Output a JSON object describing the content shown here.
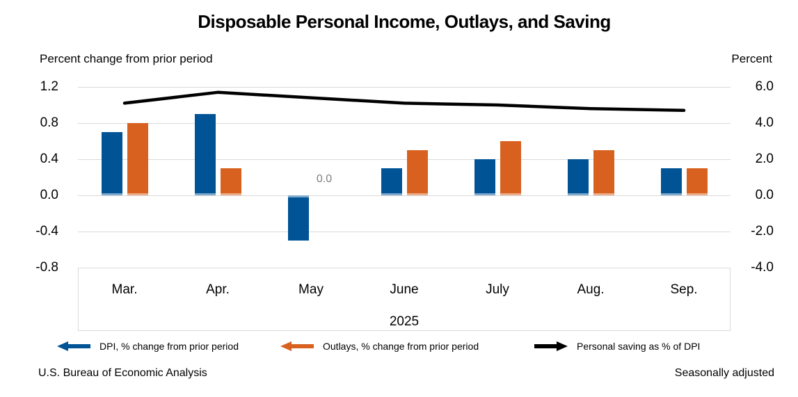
{
  "title": "Disposable Personal Income, Outlays, and Saving",
  "source_note": "U.S. Bureau of Economic Analysis",
  "adjustment_note": "Seasonally adjusted",
  "chart_data": {
    "type": "combo_bar_line",
    "categories": [
      "Mar.",
      "Apr.",
      "May",
      "June",
      "July",
      "Aug.",
      "Sep."
    ],
    "year_label": "2025",
    "left_axis": {
      "label": "Percent change from prior period",
      "min": -0.8,
      "max": 1.2,
      "ticks": [
        {
          "label": "1.2",
          "value": 1.2
        },
        {
          "label": "0.8",
          "value": 0.8
        },
        {
          "label": "0.4",
          "value": 0.4
        },
        {
          "label": "0.0",
          "value": 0.0
        },
        {
          "label": "-0.4",
          "value": -0.4
        },
        {
          "label": "-0.8",
          "value": -0.8
        }
      ]
    },
    "right_axis": {
      "label": "Percent",
      "min": -4.0,
      "max": 6.0,
      "ticks": [
        {
          "label": "6.0",
          "value": 6.0
        },
        {
          "label": "4.0",
          "value": 4.0
        },
        {
          "label": "2.0",
          "value": 2.0
        },
        {
          "label": "0.0",
          "value": 0.0
        },
        {
          "label": "-2.0",
          "value": -2.0
        },
        {
          "label": "-4.0",
          "value": -4.0
        }
      ]
    },
    "series": [
      {
        "name": "DPI, % change from prior period",
        "type": "bar",
        "axis": "left",
        "color": "#005496",
        "legend_arrow": "left",
        "values": [
          0.7,
          0.9,
          -0.5,
          0.3,
          0.4,
          0.4,
          0.3
        ]
      },
      {
        "name": "Outlays, % change from prior period",
        "type": "bar",
        "axis": "left",
        "color": "#D8611F",
        "legend_arrow": "left",
        "values": [
          0.8,
          0.3,
          0.0,
          0.5,
          0.6,
          0.5,
          0.3
        ]
      },
      {
        "name": "Personal saving as % of DPI",
        "type": "line",
        "axis": "right",
        "color": "#000000",
        "legend_arrow": "right",
        "values": [
          5.1,
          5.7,
          5.4,
          5.1,
          5.0,
          4.8,
          4.7
        ]
      }
    ],
    "annotations": [
      {
        "text": "0.0",
        "category_index": 2,
        "series_index": 1
      }
    ],
    "grid": true,
    "legend_position": "bottom",
    "gridline_color": "#D9D9D9",
    "annotation_color": "#7F7F7F"
  }
}
